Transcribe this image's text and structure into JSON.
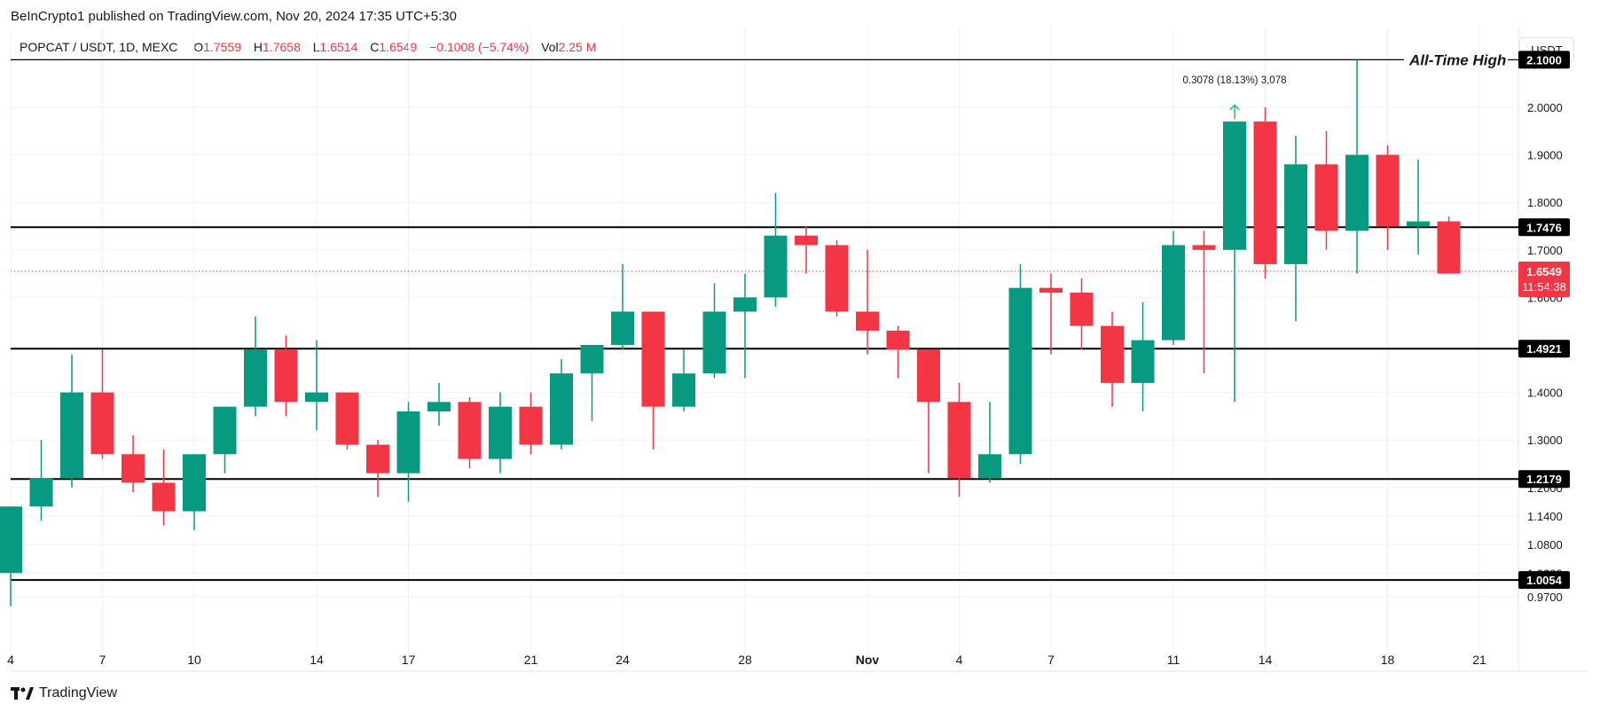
{
  "header": {
    "publisher_line": "BeInCrypto1 published on TradingView.com, Nov 20, 2024 17:35 UTC+5:30"
  },
  "legend": {
    "symbol": "POPCAT / USDT, 1D, MEXC",
    "open_label": "O",
    "open": "1.7559",
    "high_label": "H",
    "high": "1.7658",
    "low_label": "L",
    "low": "1.6514",
    "close_label": "C",
    "close": "1.6549",
    "change": "−0.1008 (−5.74%)",
    "vol_label": "Vol",
    "vol": "2.25 M"
  },
  "currency_button": "USDT",
  "brand": "TradingView",
  "colors": {
    "up": "#089981",
    "down": "#f23645",
    "line": "#000000",
    "grid": "#f0f3fa"
  },
  "chart_data": {
    "type": "candlestick",
    "x_tick_labels": [
      "4",
      "7",
      "10",
      "14",
      "17",
      "21",
      "24",
      "28",
      "Nov",
      "4",
      "7",
      "11",
      "14",
      "18",
      "21"
    ],
    "y_tick_labels": [
      "2.0000",
      "1.9000",
      "1.8000",
      "1.7000",
      "1.6000",
      "1.4000",
      "1.3000",
      "1.2000",
      "1.1400",
      "1.0800",
      "1.0200",
      "0.9700"
    ],
    "ylim": [
      0.94,
      2.17
    ],
    "candles": [
      {
        "o": 1.02,
        "h": 1.16,
        "l": 0.95,
        "c": 1.16
      },
      {
        "o": 1.16,
        "h": 1.3,
        "l": 1.13,
        "c": 1.22
      },
      {
        "o": 1.22,
        "h": 1.48,
        "l": 1.2,
        "c": 1.4
      },
      {
        "o": 1.4,
        "h": 1.49,
        "l": 1.26,
        "c": 1.27
      },
      {
        "o": 1.27,
        "h": 1.31,
        "l": 1.19,
        "c": 1.21
      },
      {
        "o": 1.21,
        "h": 1.28,
        "l": 1.12,
        "c": 1.15
      },
      {
        "o": 1.15,
        "h": 1.27,
        "l": 1.11,
        "c": 1.27
      },
      {
        "o": 1.27,
        "h": 1.37,
        "l": 1.23,
        "c": 1.37
      },
      {
        "o": 1.37,
        "h": 1.56,
        "l": 1.35,
        "c": 1.49
      },
      {
        "o": 1.49,
        "h": 1.52,
        "l": 1.35,
        "c": 1.38
      },
      {
        "o": 1.38,
        "h": 1.51,
        "l": 1.32,
        "c": 1.4
      },
      {
        "o": 1.4,
        "h": 1.4,
        "l": 1.28,
        "c": 1.29
      },
      {
        "o": 1.29,
        "h": 1.3,
        "l": 1.18,
        "c": 1.23
      },
      {
        "o": 1.23,
        "h": 1.38,
        "l": 1.17,
        "c": 1.36
      },
      {
        "o": 1.36,
        "h": 1.42,
        "l": 1.33,
        "c": 1.38
      },
      {
        "o": 1.38,
        "h": 1.39,
        "l": 1.24,
        "c": 1.26
      },
      {
        "o": 1.26,
        "h": 1.4,
        "l": 1.23,
        "c": 1.37
      },
      {
        "o": 1.37,
        "h": 1.4,
        "l": 1.27,
        "c": 1.29
      },
      {
        "o": 1.29,
        "h": 1.47,
        "l": 1.28,
        "c": 1.44
      },
      {
        "o": 1.44,
        "h": 1.5,
        "l": 1.34,
        "c": 1.5
      },
      {
        "o": 1.5,
        "h": 1.67,
        "l": 1.49,
        "c": 1.57
      },
      {
        "o": 1.57,
        "h": 1.57,
        "l": 1.28,
        "c": 1.37
      },
      {
        "o": 1.37,
        "h": 1.49,
        "l": 1.36,
        "c": 1.44
      },
      {
        "o": 1.44,
        "h": 1.63,
        "l": 1.43,
        "c": 1.57
      },
      {
        "o": 1.57,
        "h": 1.65,
        "l": 1.43,
        "c": 1.6
      },
      {
        "o": 1.6,
        "h": 1.82,
        "l": 1.58,
        "c": 1.73
      },
      {
        "o": 1.73,
        "h": 1.75,
        "l": 1.65,
        "c": 1.71
      },
      {
        "o": 1.71,
        "h": 1.72,
        "l": 1.56,
        "c": 1.57
      },
      {
        "o": 1.57,
        "h": 1.7,
        "l": 1.48,
        "c": 1.53
      },
      {
        "o": 1.53,
        "h": 1.54,
        "l": 1.43,
        "c": 1.49
      },
      {
        "o": 1.49,
        "h": 1.49,
        "l": 1.23,
        "c": 1.38
      },
      {
        "o": 1.38,
        "h": 1.42,
        "l": 1.18,
        "c": 1.22
      },
      {
        "o": 1.22,
        "h": 1.38,
        "l": 1.21,
        "c": 1.27
      },
      {
        "o": 1.27,
        "h": 1.67,
        "l": 1.25,
        "c": 1.62
      },
      {
        "o": 1.62,
        "h": 1.65,
        "l": 1.48,
        "c": 1.61
      },
      {
        "o": 1.61,
        "h": 1.64,
        "l": 1.49,
        "c": 1.54
      },
      {
        "o": 1.54,
        "h": 1.57,
        "l": 1.37,
        "c": 1.42
      },
      {
        "o": 1.42,
        "h": 1.59,
        "l": 1.36,
        "c": 1.51
      },
      {
        "o": 1.51,
        "h": 1.74,
        "l": 1.5,
        "c": 1.71
      },
      {
        "o": 1.71,
        "h": 1.74,
        "l": 1.44,
        "c": 1.7
      },
      {
        "o": 1.7,
        "h": 1.97,
        "l": 1.38,
        "c": 1.97
      },
      {
        "o": 1.97,
        "h": 2.0,
        "l": 1.64,
        "c": 1.67
      },
      {
        "o": 1.67,
        "h": 1.94,
        "l": 1.55,
        "c": 1.88
      },
      {
        "o": 1.88,
        "h": 1.95,
        "l": 1.7,
        "c": 1.74
      },
      {
        "o": 1.74,
        "h": 2.1,
        "l": 1.65,
        "c": 1.9
      },
      {
        "o": 1.9,
        "h": 1.92,
        "l": 1.7,
        "c": 1.75
      },
      {
        "o": 1.75,
        "h": 1.89,
        "l": 1.69,
        "c": 1.76
      },
      {
        "o": 1.76,
        "h": 1.77,
        "l": 1.65,
        "c": 1.65
      }
    ],
    "levels": [
      {
        "value": 2.1,
        "label": "2.1000",
        "annotation": "All-Time High"
      },
      {
        "value": 1.7476,
        "label": "1.7476"
      },
      {
        "value": 1.4921,
        "label": "1.4921"
      },
      {
        "value": 1.2179,
        "label": "1.2179"
      },
      {
        "value": 1.0054,
        "label": "1.0054"
      }
    ],
    "last_price": {
      "value": 1.6549,
      "label": "1.6549",
      "countdown": "11:54:38"
    },
    "measure_annotation": "0.3078 (18.13%) 3,078"
  }
}
